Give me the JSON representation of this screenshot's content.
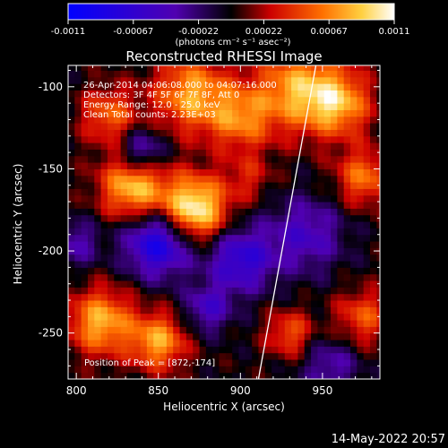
{
  "chart_data": {
    "type": "heatmap",
    "title": "Reconstructed RHESSI Image",
    "xlabel": "Heliocentric X (arcsec)",
    "ylabel": "Heliocentric Y (arcsec)",
    "x_range": [
      795,
      985
    ],
    "y_range": [
      -278,
      -87
    ],
    "x_ticks": [
      800,
      850,
      900,
      950
    ],
    "y_ticks": [
      -100,
      -150,
      -200,
      -250
    ],
    "colorbar": {
      "min": -0.0011,
      "max": 0.0011,
      "ticks": [
        "-0.0011",
        "-0.00067",
        "-0.00022",
        "0.00022",
        "0.00067",
        "0.0011"
      ],
      "units_line": "(photons cm⁻² s⁻¹ asec⁻²)"
    },
    "annotations": [
      "26-Apr-2014 04:06:08.000 to 04:07:16.000",
      "Detectors: 3F 4F 5F 6F 7F 8F, Att 0",
      "Energy Range: 12.0 - 25.0 keV",
      "Clean     Total counts: 2.23E+03"
    ],
    "peak_label": "Position of Peak = [872,-174]",
    "peak": {
      "x": 872,
      "y": -174
    },
    "limb_line": [
      [
        946,
        -87
      ],
      [
        911,
        -278
      ]
    ],
    "sources": [
      {
        "x": 872,
        "y": -174,
        "sigma": 14,
        "amp": 0.0011
      },
      {
        "x": 835,
        "y": -160,
        "sigma": 14,
        "amp": 0.0009
      },
      {
        "x": 815,
        "y": -243,
        "sigma": 14,
        "amp": 0.0008
      },
      {
        "x": 850,
        "y": -255,
        "sigma": 12,
        "amp": 0.00075
      },
      {
        "x": 870,
        "y": -104,
        "sigma": 16,
        "amp": 0.00075
      },
      {
        "x": 935,
        "y": -101,
        "sigma": 18,
        "amp": 0.00075
      },
      {
        "x": 960,
        "y": -110,
        "sigma": 14,
        "amp": 0.0007
      },
      {
        "x": 900,
        "y": -119,
        "sigma": 14,
        "amp": 0.0006
      },
      {
        "x": 975,
        "y": -155,
        "sigma": 12,
        "amp": 0.0006
      },
      {
        "x": 820,
        "y": -117,
        "sigma": 12,
        "amp": 0.00055
      },
      {
        "x": 930,
        "y": -250,
        "sigma": 10,
        "amp": 0.0005
      },
      {
        "x": 975,
        "y": -240,
        "sigma": 12,
        "amp": 0.0005
      },
      {
        "x": 905,
        "y": -155,
        "sigma": 10,
        "amp": 0.0003
      },
      {
        "x": 850,
        "y": -195,
        "sigma": 14,
        "amp": -0.0009
      },
      {
        "x": 900,
        "y": -205,
        "sigma": 14,
        "amp": -0.0007
      },
      {
        "x": 940,
        "y": -190,
        "sigma": 16,
        "amp": -0.0005
      },
      {
        "x": 840,
        "y": -140,
        "sigma": 10,
        "amp": -0.0006
      },
      {
        "x": 955,
        "y": -270,
        "sigma": 12,
        "amp": -0.0004
      },
      {
        "x": 880,
        "y": -235,
        "sigma": 10,
        "amp": -0.0005
      },
      {
        "x": 800,
        "y": -195,
        "sigma": 10,
        "amp": -0.0004
      }
    ]
  },
  "footer": {
    "timestamp": "14-May-2022 20:57"
  }
}
